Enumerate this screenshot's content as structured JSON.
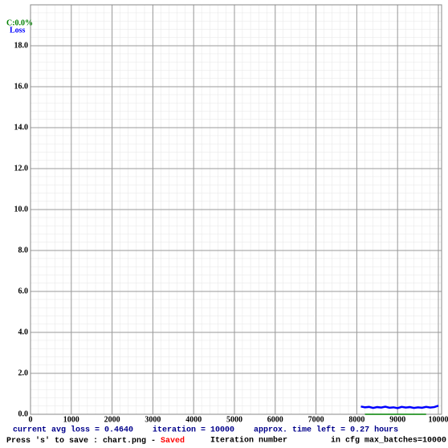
{
  "chart_data": {
    "type": "line",
    "xlim": [
      0,
      10000
    ],
    "xticks": [
      0,
      1000,
      2000,
      3000,
      4000,
      5000,
      6000,
      7000,
      8000,
      9000,
      10000
    ],
    "ylim": [
      0,
      20
    ],
    "yticks": [
      {
        "value": 0,
        "label": "0.0"
      },
      {
        "value": 2,
        "label": "2.0"
      },
      {
        "value": 4,
        "label": "4.0"
      },
      {
        "value": 6,
        "label": "6.0"
      },
      {
        "value": 8,
        "label": "8.0"
      },
      {
        "value": 10,
        "label": "10.0"
      },
      {
        "value": 12,
        "label": "12.0"
      },
      {
        "value": 14,
        "label": "14.0"
      },
      {
        "value": 16,
        "label": "16.0"
      },
      {
        "value": 18,
        "label": "18.0"
      }
    ],
    "grid": true,
    "series": [
      {
        "name": "Loss",
        "color": "#0000ff",
        "x": [
          8100,
          8200,
          8300,
          8400,
          8500,
          8600,
          8700,
          8800,
          8900,
          9000,
          9100,
          9200,
          9300,
          9400,
          9500,
          9600,
          9700,
          9800,
          9900,
          10000
        ],
        "values": [
          0.38,
          0.34,
          0.36,
          0.31,
          0.35,
          0.33,
          0.37,
          0.32,
          0.34,
          0.3,
          0.36,
          0.33,
          0.35,
          0.31,
          0.34,
          0.32,
          0.36,
          0.33,
          0.35,
          0.42
        ]
      },
      {
        "name": "C:0.0%",
        "color": "#008000",
        "x": [
          8200,
          9700
        ],
        "values": [
          0,
          0
        ]
      }
    ],
    "status_line": "current avg loss = 0.4640    iteration = 10000    approx. time left = 0.27 hours",
    "save_hint": "Press 's' to save : chart.png - ",
    "save_state": "Saved",
    "xlabel": "Iteration number",
    "cfg_note": "in cfg max_batches=10000"
  }
}
